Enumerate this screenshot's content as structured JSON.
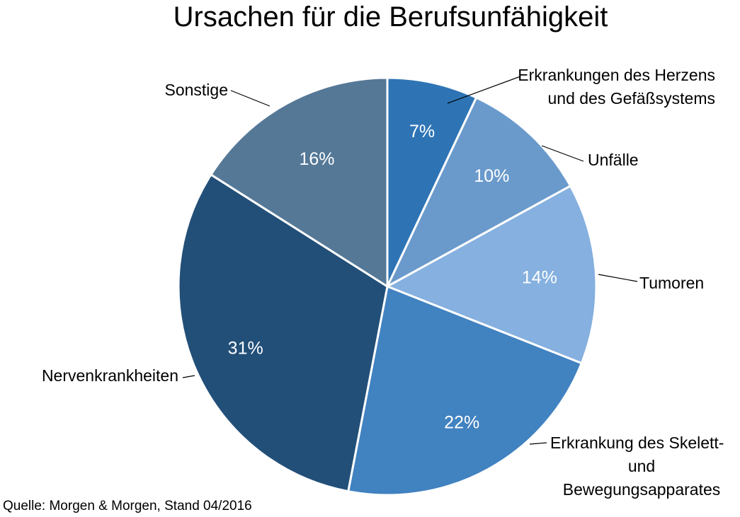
{
  "source_note": "Quelle: Morgen & Morgen, Stand 04/2016",
  "chart_data": {
    "type": "pie",
    "title": "Ursachen für die Berufsunfähigkeit",
    "slices": [
      {
        "label": [
          "Erkrankungen des Herzens",
          "und des Gefäßsystems"
        ],
        "value": 7,
        "value_label": "7%",
        "color": "#2E74B5"
      },
      {
        "label": [
          "Unfälle"
        ],
        "value": 10,
        "value_label": "10%",
        "color": "#6A9ACB"
      },
      {
        "label": [
          "Tumoren"
        ],
        "value": 14,
        "value_label": "14%",
        "color": "#85B0DF"
      },
      {
        "label": [
          "Erkrankung des Skelett-",
          "und",
          "Bewegungsapparates"
        ],
        "value": 22,
        "value_label": "22%",
        "color": "#4182C0"
      },
      {
        "label": [
          "Nervenkrankheiten"
        ],
        "value": 31,
        "value_label": "31%",
        "color": "#224F78"
      },
      {
        "label": [
          "Sonstige"
        ],
        "value": 16,
        "value_label": "16%",
        "color": "#557897"
      }
    ],
    "start": "12 o'clock",
    "direction": "clockwise",
    "legend": "none (callout labels)"
  }
}
